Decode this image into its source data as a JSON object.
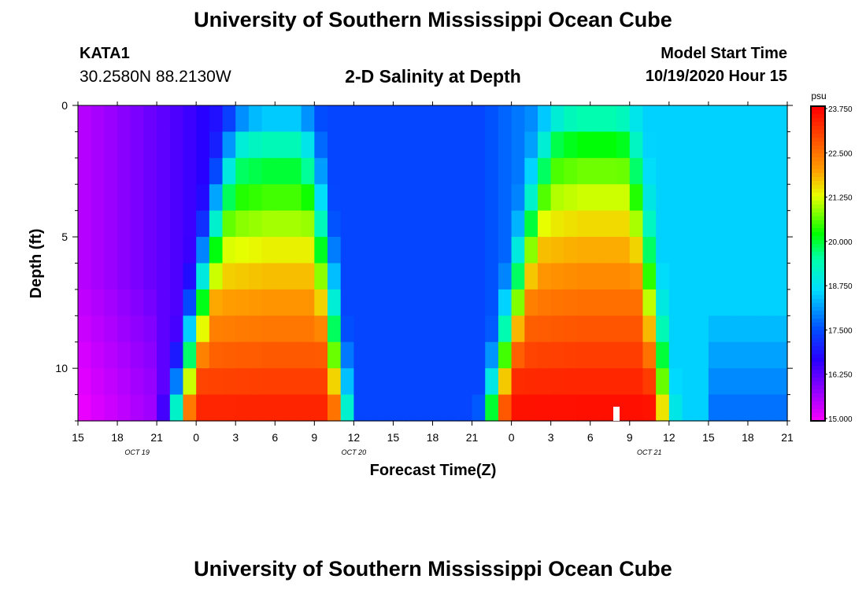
{
  "header": {
    "title": "University of Southern Mississippi Ocean Cube",
    "station_id": "KATA1",
    "station_coords": "30.2580N 88.2130W",
    "subtitle": "2-D Salinity at Depth",
    "model_start_label": "Model Start Time",
    "model_start_value": "10/19/2020 Hour 15"
  },
  "footer": {
    "title": "University of Southern Mississippi Ocean Cube"
  },
  "chart_data": {
    "type": "heatmap",
    "xlabel": "Forecast Time(Z)",
    "ylabel": "Depth (ft)",
    "x_range_hours": [
      0,
      54
    ],
    "x_ticks": [
      "15",
      "18",
      "21",
      "0",
      "3",
      "6",
      "9",
      "12",
      "15",
      "18",
      "21",
      "0",
      "3",
      "6",
      "9",
      "12",
      "15",
      "18",
      "21"
    ],
    "date_labels": [
      {
        "label": "OCT 19",
        "hour": 4.5
      },
      {
        "label": "OCT 20",
        "hour": 21
      },
      {
        "label": "OCT 21",
        "hour": 43.5
      }
    ],
    "y_range_ft": [
      0,
      12
    ],
    "y_ticks": [
      0,
      5,
      10
    ],
    "colorbar": {
      "unit": "psu",
      "min": 15.0,
      "max": 23.75,
      "tick_labels": [
        "15.000",
        "16.250",
        "17.500",
        "18.750",
        "20.000",
        "21.250",
        "22.500",
        "23.750"
      ]
    },
    "depth_levels": 12,
    "time_columns": 54,
    "surface_salinity_time_series": "low (~15.6) at start, rising to ~17.5 by hour 14, ~18.6 after hour 36",
    "bottom_salinity_peaks_psu": [
      23.6,
      23.6
    ],
    "features": [
      {
        "description": "first high-salinity event",
        "start_hour": 6,
        "end_hour": 21.5,
        "peak_psu": 23.5
      },
      {
        "description": "second high-salinity event",
        "start_hour": 30,
        "end_hour": 46,
        "peak_psu": 23.7
      }
    ],
    "colors": {
      "low": "#ff00ff",
      "mid_low": "#0000ff",
      "mid": "#00ffff",
      "mid_high": "#00ff00",
      "high_mid": "#ffff00",
      "high": "#ff0000"
    }
  }
}
